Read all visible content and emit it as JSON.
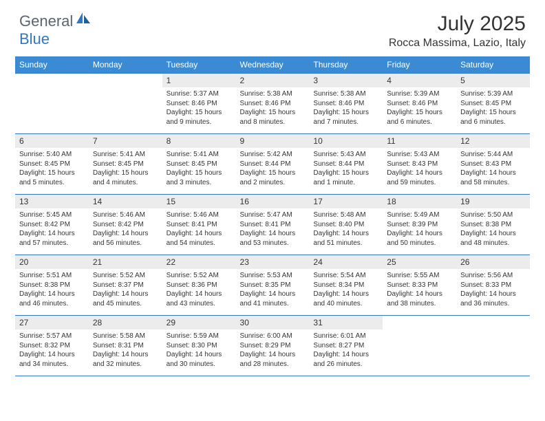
{
  "logo": {
    "text1": "General",
    "text2": "Blue"
  },
  "title": "July 2025",
  "location": "Rocca Massima, Lazio, Italy",
  "calendar": {
    "header_bg": "#3b8bd4",
    "border_color": "#2f78c4",
    "daynum_bg": "#ececec",
    "days": [
      "Sunday",
      "Monday",
      "Tuesday",
      "Wednesday",
      "Thursday",
      "Friday",
      "Saturday"
    ],
    "first_weekday": 2,
    "days_in_month": 31,
    "cells": [
      {
        "n": 1,
        "sr": "5:37 AM",
        "ss": "8:46 PM",
        "dl": "15 hours and 9 minutes."
      },
      {
        "n": 2,
        "sr": "5:38 AM",
        "ss": "8:46 PM",
        "dl": "15 hours and 8 minutes."
      },
      {
        "n": 3,
        "sr": "5:38 AM",
        "ss": "8:46 PM",
        "dl": "15 hours and 7 minutes."
      },
      {
        "n": 4,
        "sr": "5:39 AM",
        "ss": "8:46 PM",
        "dl": "15 hours and 6 minutes."
      },
      {
        "n": 5,
        "sr": "5:39 AM",
        "ss": "8:45 PM",
        "dl": "15 hours and 6 minutes."
      },
      {
        "n": 6,
        "sr": "5:40 AM",
        "ss": "8:45 PM",
        "dl": "15 hours and 5 minutes."
      },
      {
        "n": 7,
        "sr": "5:41 AM",
        "ss": "8:45 PM",
        "dl": "15 hours and 4 minutes."
      },
      {
        "n": 8,
        "sr": "5:41 AM",
        "ss": "8:45 PM",
        "dl": "15 hours and 3 minutes."
      },
      {
        "n": 9,
        "sr": "5:42 AM",
        "ss": "8:44 PM",
        "dl": "15 hours and 2 minutes."
      },
      {
        "n": 10,
        "sr": "5:43 AM",
        "ss": "8:44 PM",
        "dl": "15 hours and 1 minute."
      },
      {
        "n": 11,
        "sr": "5:43 AM",
        "ss": "8:43 PM",
        "dl": "14 hours and 59 minutes."
      },
      {
        "n": 12,
        "sr": "5:44 AM",
        "ss": "8:43 PM",
        "dl": "14 hours and 58 minutes."
      },
      {
        "n": 13,
        "sr": "5:45 AM",
        "ss": "8:42 PM",
        "dl": "14 hours and 57 minutes."
      },
      {
        "n": 14,
        "sr": "5:46 AM",
        "ss": "8:42 PM",
        "dl": "14 hours and 56 minutes."
      },
      {
        "n": 15,
        "sr": "5:46 AM",
        "ss": "8:41 PM",
        "dl": "14 hours and 54 minutes."
      },
      {
        "n": 16,
        "sr": "5:47 AM",
        "ss": "8:41 PM",
        "dl": "14 hours and 53 minutes."
      },
      {
        "n": 17,
        "sr": "5:48 AM",
        "ss": "8:40 PM",
        "dl": "14 hours and 51 minutes."
      },
      {
        "n": 18,
        "sr": "5:49 AM",
        "ss": "8:39 PM",
        "dl": "14 hours and 50 minutes."
      },
      {
        "n": 19,
        "sr": "5:50 AM",
        "ss": "8:38 PM",
        "dl": "14 hours and 48 minutes."
      },
      {
        "n": 20,
        "sr": "5:51 AM",
        "ss": "8:38 PM",
        "dl": "14 hours and 46 minutes."
      },
      {
        "n": 21,
        "sr": "5:52 AM",
        "ss": "8:37 PM",
        "dl": "14 hours and 45 minutes."
      },
      {
        "n": 22,
        "sr": "5:52 AM",
        "ss": "8:36 PM",
        "dl": "14 hours and 43 minutes."
      },
      {
        "n": 23,
        "sr": "5:53 AM",
        "ss": "8:35 PM",
        "dl": "14 hours and 41 minutes."
      },
      {
        "n": 24,
        "sr": "5:54 AM",
        "ss": "8:34 PM",
        "dl": "14 hours and 40 minutes."
      },
      {
        "n": 25,
        "sr": "5:55 AM",
        "ss": "8:33 PM",
        "dl": "14 hours and 38 minutes."
      },
      {
        "n": 26,
        "sr": "5:56 AM",
        "ss": "8:33 PM",
        "dl": "14 hours and 36 minutes."
      },
      {
        "n": 27,
        "sr": "5:57 AM",
        "ss": "8:32 PM",
        "dl": "14 hours and 34 minutes."
      },
      {
        "n": 28,
        "sr": "5:58 AM",
        "ss": "8:31 PM",
        "dl": "14 hours and 32 minutes."
      },
      {
        "n": 29,
        "sr": "5:59 AM",
        "ss": "8:30 PM",
        "dl": "14 hours and 30 minutes."
      },
      {
        "n": 30,
        "sr": "6:00 AM",
        "ss": "8:29 PM",
        "dl": "14 hours and 28 minutes."
      },
      {
        "n": 31,
        "sr": "6:01 AM",
        "ss": "8:27 PM",
        "dl": "14 hours and 26 minutes."
      }
    ]
  }
}
